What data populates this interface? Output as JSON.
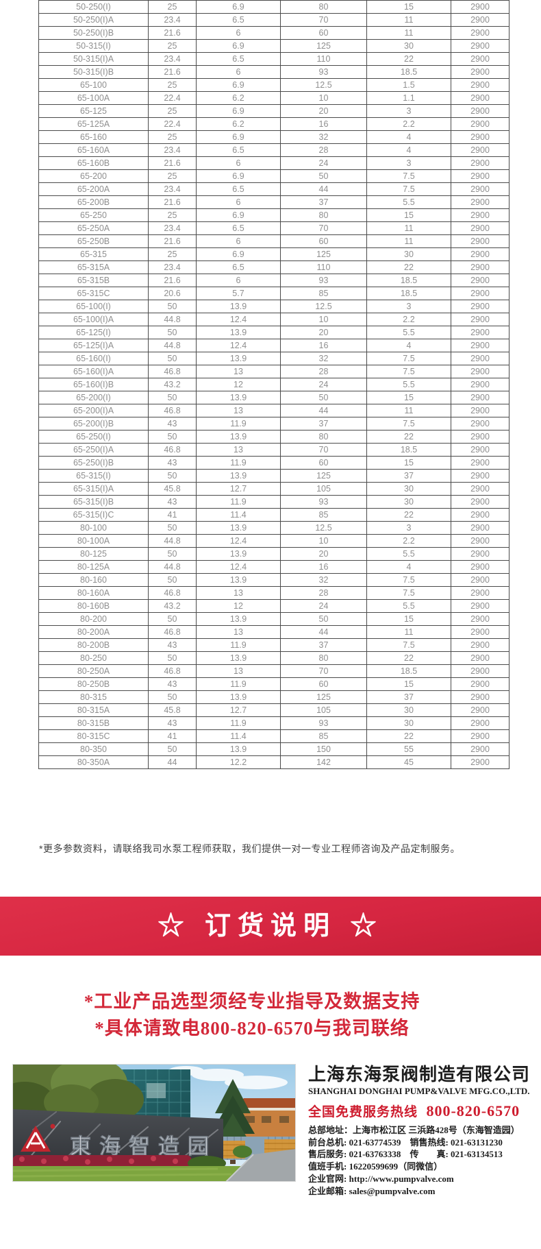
{
  "table": {
    "rows": [
      [
        "50-250(I)",
        "25",
        "6.9",
        "80",
        "15",
        "2900"
      ],
      [
        "50-250(I)A",
        "23.4",
        "6.5",
        "70",
        "11",
        "2900"
      ],
      [
        "50-250(I)B",
        "21.6",
        "6",
        "60",
        "11",
        "2900"
      ],
      [
        "50-315(I)",
        "25",
        "6.9",
        "125",
        "30",
        "2900"
      ],
      [
        "50-315(I)A",
        "23.4",
        "6.5",
        "110",
        "22",
        "2900"
      ],
      [
        "50-315(I)B",
        "21.6",
        "6",
        "93",
        "18.5",
        "2900"
      ],
      [
        "65-100",
        "25",
        "6.9",
        "12.5",
        "1.5",
        "2900"
      ],
      [
        "65-100A",
        "22.4",
        "6.2",
        "10",
        "1.1",
        "2900"
      ],
      [
        "65-125",
        "25",
        "6.9",
        "20",
        "3",
        "2900"
      ],
      [
        "65-125A",
        "22.4",
        "6.2",
        "16",
        "2.2",
        "2900"
      ],
      [
        "65-160",
        "25",
        "6.9",
        "32",
        "4",
        "2900"
      ],
      [
        "65-160A",
        "23.4",
        "6.5",
        "28",
        "4",
        "2900"
      ],
      [
        "65-160B",
        "21.6",
        "6",
        "24",
        "3",
        "2900"
      ],
      [
        "65-200",
        "25",
        "6.9",
        "50",
        "7.5",
        "2900"
      ],
      [
        "65-200A",
        "23.4",
        "6.5",
        "44",
        "7.5",
        "2900"
      ],
      [
        "65-200B",
        "21.6",
        "6",
        "37",
        "5.5",
        "2900"
      ],
      [
        "65-250",
        "25",
        "6.9",
        "80",
        "15",
        "2900"
      ],
      [
        "65-250A",
        "23.4",
        "6.5",
        "70",
        "11",
        "2900"
      ],
      [
        "65-250B",
        "21.6",
        "6",
        "60",
        "11",
        "2900"
      ],
      [
        "65-315",
        "25",
        "6.9",
        "125",
        "30",
        "2900"
      ],
      [
        "65-315A",
        "23.4",
        "6.5",
        "110",
        "22",
        "2900"
      ],
      [
        "65-315B",
        "21.6",
        "6",
        "93",
        "18.5",
        "2900"
      ],
      [
        "65-315C",
        "20.6",
        "5.7",
        "85",
        "18.5",
        "2900"
      ],
      [
        "65-100(I)",
        "50",
        "13.9",
        "12.5",
        "3",
        "2900"
      ],
      [
        "65-100(I)A",
        "44.8",
        "12.4",
        "10",
        "2.2",
        "2900"
      ],
      [
        "65-125(I)",
        "50",
        "13.9",
        "20",
        "5.5",
        "2900"
      ],
      [
        "65-125(I)A",
        "44.8",
        "12.4",
        "16",
        "4",
        "2900"
      ],
      [
        "65-160(I)",
        "50",
        "13.9",
        "32",
        "7.5",
        "2900"
      ],
      [
        "65-160(I)A",
        "46.8",
        "13",
        "28",
        "7.5",
        "2900"
      ],
      [
        "65-160(I)B",
        "43.2",
        "12",
        "24",
        "5.5",
        "2900"
      ],
      [
        "65-200(I)",
        "50",
        "13.9",
        "50",
        "15",
        "2900"
      ],
      [
        "65-200(I)A",
        "46.8",
        "13",
        "44",
        "11",
        "2900"
      ],
      [
        "65-200(I)B",
        "43",
        "11.9",
        "37",
        "7.5",
        "2900"
      ],
      [
        "65-250(I)",
        "50",
        "13.9",
        "80",
        "22",
        "2900"
      ],
      [
        "65-250(I)A",
        "46.8",
        "13",
        "70",
        "18.5",
        "2900"
      ],
      [
        "65-250(I)B",
        "43",
        "11.9",
        "60",
        "15",
        "2900"
      ],
      [
        "65-315(I)",
        "50",
        "13.9",
        "125",
        "37",
        "2900"
      ],
      [
        "65-315(I)A",
        "45.8",
        "12.7",
        "105",
        "30",
        "2900"
      ],
      [
        "65-315(I)B",
        "43",
        "11.9",
        "93",
        "30",
        "2900"
      ],
      [
        "65-315(I)C",
        "41",
        "11.4",
        "85",
        "22",
        "2900"
      ],
      [
        "80-100",
        "50",
        "13.9",
        "12.5",
        "3",
        "2900"
      ],
      [
        "80-100A",
        "44.8",
        "12.4",
        "10",
        "2.2",
        "2900"
      ],
      [
        "80-125",
        "50",
        "13.9",
        "20",
        "5.5",
        "2900"
      ],
      [
        "80-125A",
        "44.8",
        "12.4",
        "16",
        "4",
        "2900"
      ],
      [
        "80-160",
        "50",
        "13.9",
        "32",
        "7.5",
        "2900"
      ],
      [
        "80-160A",
        "46.8",
        "13",
        "28",
        "7.5",
        "2900"
      ],
      [
        "80-160B",
        "43.2",
        "12",
        "24",
        "5.5",
        "2900"
      ],
      [
        "80-200",
        "50",
        "13.9",
        "50",
        "15",
        "2900"
      ],
      [
        "80-200A",
        "46.8",
        "13",
        "44",
        "11",
        "2900"
      ],
      [
        "80-200B",
        "43",
        "11.9",
        "37",
        "7.5",
        "2900"
      ],
      [
        "80-250",
        "50",
        "13.9",
        "80",
        "22",
        "2900"
      ],
      [
        "80-250A",
        "46.8",
        "13",
        "70",
        "18.5",
        "2900"
      ],
      [
        "80-250B",
        "43",
        "11.9",
        "60",
        "15",
        "2900"
      ],
      [
        "80-315",
        "50",
        "13.9",
        "125",
        "37",
        "2900"
      ],
      [
        "80-315A",
        "45.8",
        "12.7",
        "105",
        "30",
        "2900"
      ],
      [
        "80-315B",
        "43",
        "11.9",
        "93",
        "30",
        "2900"
      ],
      [
        "80-315C",
        "41",
        "11.4",
        "85",
        "22",
        "2900"
      ],
      [
        "80-350",
        "50",
        "13.9",
        "150",
        "55",
        "2900"
      ],
      [
        "80-350A",
        "44",
        "12.2",
        "142",
        "45",
        "2900"
      ]
    ]
  },
  "note": "*更多参数资料，请联络我司水泵工程师获取，我们提供一对一专业工程师咨询及产品定制服务。",
  "banner": {
    "title": "☆ 订货说明 ☆"
  },
  "notices": [
    "*工业产品选型须经专业指导及数据支持",
    "*具体请致电800-820-6570与我司联络"
  ],
  "company": {
    "name_cn": "上海东海泵阀制造有限公司",
    "name_en": "SHANGHAI DONGHAI PUMP&VALVE MFG.CO.,LTD.",
    "hotline_label": "全国免费服务热线",
    "hotline_number": "800-820-6570",
    "photo_sign_text": "東海智造园",
    "details": [
      {
        "label": "总部地址：",
        "value": "上海市松江区 三浜路428号（东海智造园）",
        "link": false
      },
      {
        "label": "前台总机: ",
        "value": "021-63774539",
        "label2": "　销售热线: ",
        "value2": "021-63131230",
        "link": false
      },
      {
        "label": "售后服务: ",
        "value": "021-63763338",
        "label2": "　传　　真: ",
        "value2": "021-63134513",
        "link": false
      },
      {
        "label": "值班手机: ",
        "value": "16220599699（同微信）",
        "link": false
      },
      {
        "label": "企业官网: ",
        "value": "http://www.pumpvalve.com",
        "link": true
      },
      {
        "label": "企业邮箱: ",
        "value": "sales@pumpvalve.com",
        "link": true
      }
    ]
  },
  "colors": {
    "banner_top": "#df3049",
    "banner_bottom": "#c51f37",
    "accent_red": "#d32839",
    "hotline_red": "#ce1c2e",
    "table_border": "#4a4a4a",
    "table_text": "#8f8f8f",
    "note_text": "#3f3f3f",
    "company_text": "#1d1d1d"
  }
}
